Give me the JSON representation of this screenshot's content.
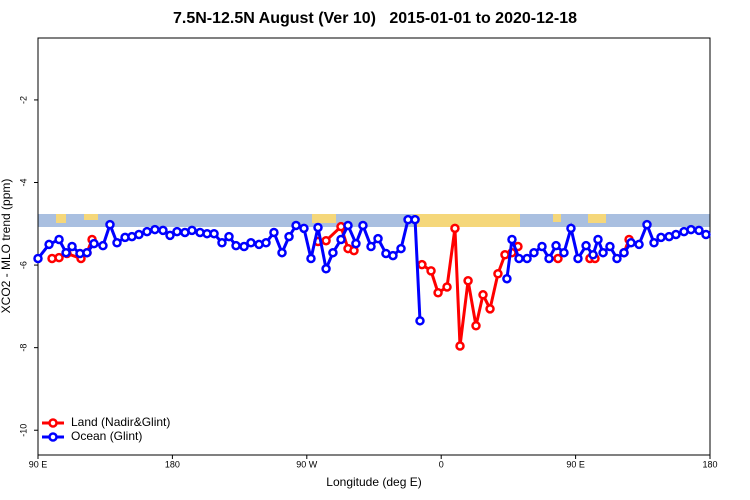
{
  "chart_data": {
    "type": "line",
    "title": "7.5N-12.5N August (Ver 10)   2015-01-01 to 2020-12-18",
    "xlabel": "Longitude (deg E)",
    "ylabel": "XCO2 - MLO trend (ppm)",
    "xlim": [
      90,
      540
    ],
    "xticks": [
      {
        "value": 90,
        "label": "90 E"
      },
      {
        "value": 180,
        "label": "180"
      },
      {
        "value": 270,
        "label": "90 W"
      },
      {
        "value": 360,
        "label": "0"
      },
      {
        "value": 450,
        "label": "90 E"
      },
      {
        "value": 540,
        "label": "180"
      }
    ],
    "ylim": [
      -10.6,
      -0.5
    ],
    "yticks": [
      -10,
      -8,
      -6,
      -4,
      -2
    ],
    "legend": "bottom-left",
    "series": [
      {
        "name": "Land (Nadir&Glint)",
        "color": "#ff0000",
        "x": [
          99.4,
          104.1,
          109.4,
          118.8,
          122.8,
          126.2,
          null,
          277.5,
          282.9,
          292.9,
          297.6,
          301.6,
          null,
          347.1,
          353.2,
          357.9,
          363.9,
          369.2,
          372.6,
          378,
          383.3,
          388,
          392.7,
          398,
          402.7,
          407.4,
          411.4,
          null,
          438.2,
          null,
          459.6,
          463,
          null,
          482.4,
          485.8
        ],
        "values": [
          -5.84,
          -5.82,
          -5.72,
          -5.84,
          -5.7,
          -5.38,
          null,
          -5.43,
          -5.41,
          -5.07,
          -5.6,
          -5.65,
          null,
          -5.99,
          -6.14,
          -6.67,
          -6.53,
          -5.11,
          -7.96,
          -6.38,
          -7.47,
          -6.72,
          -7.06,
          -6.21,
          -5.75,
          -5.7,
          -5.55,
          null,
          -5.84,
          null,
          -5.84,
          -5.84,
          null,
          -5.7,
          -5.38
        ]
      },
      {
        "name": "Ocean (Glint)",
        "color": "#0000ff",
        "x": [
          90,
          97.4,
          104.1,
          108.8,
          112.8,
          118.1,
          122.8,
          127.5,
          133.5,
          138.2,
          142.9,
          148.3,
          152.9,
          157.6,
          163,
          168.3,
          173.7,
          178.4,
          183.1,
          188.4,
          193.1,
          198.5,
          203.2,
          207.9,
          213.2,
          217.9,
          222.6,
          228,
          232.6,
          238,
          242.7,
          248,
          253.4,
          258.1,
          262.8,
          268.1,
          272.8,
          277.5,
          282.9,
          287.5,
          292.9,
          297.6,
          302.9,
          307.6,
          313,
          317.7,
          323,
          327.7,
          333.1,
          337.8,
          342.5,
          345.8,
          null,
          404,
          407.4,
          412.1,
          417.5,
          422.1,
          427.5,
          432.2,
          436.9,
          442.2,
          446.9,
          451.6,
          457,
          461.7,
          465,
          468.4,
          473,
          477.7,
          482.4,
          487.1,
          492.5,
          497.8,
          502.5,
          507.2,
          512.6,
          517.2,
          522.6,
          527.3,
          532.6,
          537.3
        ],
        "values": [
          -5.84,
          -5.5,
          -5.38,
          -5.7,
          -5.55,
          -5.72,
          -5.7,
          -5.48,
          -5.53,
          -5.02,
          -5.46,
          -5.33,
          -5.31,
          -5.26,
          -5.19,
          -5.14,
          -5.16,
          -5.28,
          -5.19,
          -5.21,
          -5.16,
          -5.21,
          -5.24,
          -5.24,
          -5.46,
          -5.31,
          -5.53,
          -5.55,
          -5.46,
          -5.5,
          -5.46,
          -5.21,
          -5.7,
          -5.31,
          -5.04,
          -5.11,
          -5.84,
          -5.09,
          -6.09,
          -5.7,
          -5.38,
          -5.04,
          -5.48,
          -5.04,
          -5.55,
          -5.36,
          -5.72,
          -5.77,
          -5.6,
          -4.9,
          -4.9,
          -7.35,
          null,
          -6.33,
          -5.38,
          -5.84,
          -5.84,
          -5.7,
          -5.55,
          -5.84,
          -5.53,
          -5.7,
          -5.11,
          -5.84,
          -5.53,
          -5.75,
          -5.38,
          -5.7,
          -5.55,
          -5.84,
          -5.7,
          -5.46,
          -5.5,
          -5.02,
          -5.46,
          -5.33,
          -5.31,
          -5.26,
          -5.19,
          -5.14,
          -5.16,
          -5.26
        ]
      }
    ]
  }
}
